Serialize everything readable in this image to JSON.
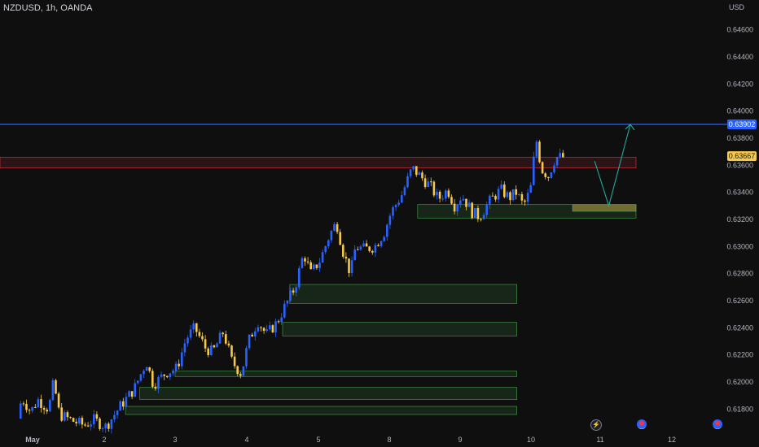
{
  "header": {
    "title": "NZDUSD, 1h, OANDA",
    "currency": "USD"
  },
  "colors": {
    "background": "#0f0f0f",
    "bull": "#2962ff",
    "bear": "#f7c948",
    "resistance_line": "#2962ff",
    "resistance_zone": "#f23645",
    "demand_zone": "#4caf50",
    "projection": "#26a69a",
    "price_badge": "#f7c948",
    "level_badge": "#2962ff"
  },
  "events": [
    {
      "name": "lightning-icon",
      "x": "11"
    },
    {
      "name": "flag-icon",
      "x": "11.5"
    },
    {
      "name": "flag-icon",
      "x": "12.6"
    }
  ],
  "chart_data": {
    "type": "candlestick",
    "title": "NZDUSD, 1h, OANDA",
    "ylabel": "USD",
    "ylim": [
      0.6164,
      0.6482
    ],
    "yticks": [
      "0.64600",
      "0.64400",
      "0.64200",
      "0.64000",
      "0.63800",
      "0.63600",
      "0.63400",
      "0.63200",
      "0.63000",
      "0.62800",
      "0.62600",
      "0.62400",
      "0.62200",
      "0.62000",
      "0.61800"
    ],
    "xticks": [
      {
        "label": "May",
        "day": 1,
        "bold": true
      },
      {
        "label": "2",
        "day": 2
      },
      {
        "label": "3",
        "day": 3
      },
      {
        "label": "4",
        "day": 4
      },
      {
        "label": "5",
        "day": 5
      },
      {
        "label": "8",
        "day": 6
      },
      {
        "label": "9",
        "day": 7
      },
      {
        "label": "10",
        "day": 8
      },
      {
        "label": "11",
        "day": 9
      },
      {
        "label": "12",
        "day": 10
      }
    ],
    "resistance_line": {
      "value": 0.63902,
      "label": "0.63902"
    },
    "current_price": {
      "value": 0.63667,
      "label": "0.63667"
    },
    "resistance_zone": {
      "low": 0.6358,
      "high": 0.6366,
      "start_day": 0.5,
      "end_day": 9.5
    },
    "demand_zones": [
      {
        "low": 0.6176,
        "high": 0.6182,
        "start_day": 2.3,
        "end_day": 7.8
      },
      {
        "low": 0.6187,
        "high": 0.6196,
        "start_day": 2.5,
        "end_day": 7.8
      },
      {
        "low": 0.6204,
        "high": 0.6208,
        "start_day": 3.0,
        "end_day": 7.8
      },
      {
        "low": 0.6234,
        "high": 0.6244,
        "start_day": 4.5,
        "end_day": 7.8
      },
      {
        "low": 0.6258,
        "high": 0.6272,
        "start_day": 4.6,
        "end_day": 7.8
      },
      {
        "low": 0.6321,
        "high": 0.6331,
        "start_day": 6.4,
        "end_day": 9.5
      },
      {
        "low": 0.6326,
        "high": 0.6331,
        "start_day": 8.6,
        "end_day": 9.5
      }
    ],
    "projection": [
      {
        "day": 8.92,
        "price": 0.6363
      },
      {
        "day": 9.12,
        "price": 0.633
      },
      {
        "day": 9.42,
        "price": 0.63902
      }
    ],
    "path": [
      [
        0.6,
        0.6173
      ],
      [
        0.72,
        0.6188
      ],
      [
        0.85,
        0.6184
      ],
      [
        1.0,
        0.6178
      ],
      [
        1.1,
        0.6187
      ],
      [
        1.25,
        0.618
      ],
      [
        1.32,
        0.62
      ],
      [
        1.4,
        0.6176
      ],
      [
        1.6,
        0.6171
      ],
      [
        1.75,
        0.6168
      ],
      [
        1.88,
        0.6172
      ],
      [
        2.05,
        0.6167
      ],
      [
        2.25,
        0.6182
      ],
      [
        2.45,
        0.6195
      ],
      [
        2.62,
        0.6215
      ],
      [
        2.72,
        0.6198
      ],
      [
        2.9,
        0.6207
      ],
      [
        3.05,
        0.621
      ],
      [
        3.18,
        0.6232
      ],
      [
        3.3,
        0.624
      ],
      [
        3.45,
        0.6225
      ],
      [
        3.55,
        0.6222
      ],
      [
        3.7,
        0.6237
      ],
      [
        3.82,
        0.6215
      ],
      [
        3.95,
        0.6206
      ],
      [
        4.05,
        0.623
      ],
      [
        4.18,
        0.6245
      ],
      [
        4.3,
        0.6235
      ],
      [
        4.45,
        0.6244
      ],
      [
        4.55,
        0.6255
      ],
      [
        4.7,
        0.627
      ],
      [
        4.82,
        0.6295
      ],
      [
        4.92,
        0.628
      ],
      [
        5.05,
        0.629
      ],
      [
        5.18,
        0.6308
      ],
      [
        5.28,
        0.6318
      ],
      [
        5.38,
        0.6295
      ],
      [
        5.48,
        0.628
      ],
      [
        5.55,
        0.63
      ],
      [
        5.68,
        0.6298
      ],
      [
        5.82,
        0.63
      ],
      [
        5.95,
        0.631
      ],
      [
        6.05,
        0.6325
      ],
      [
        6.2,
        0.6338
      ],
      [
        6.35,
        0.6358
      ],
      [
        6.5,
        0.635
      ],
      [
        6.6,
        0.6345
      ],
      [
        6.72,
        0.6335
      ],
      [
        6.85,
        0.6342
      ],
      [
        6.95,
        0.633
      ],
      [
        7.05,
        0.6338
      ],
      [
        7.2,
        0.6325
      ],
      [
        7.3,
        0.6322
      ],
      [
        7.45,
        0.6334
      ],
      [
        7.6,
        0.6342
      ],
      [
        7.72,
        0.6336
      ],
      [
        7.82,
        0.634
      ],
      [
        7.92,
        0.633
      ],
      [
        8.02,
        0.6342
      ],
      [
        8.1,
        0.638
      ],
      [
        8.18,
        0.6357
      ],
      [
        8.28,
        0.6352
      ],
      [
        8.38,
        0.6366
      ],
      [
        8.45,
        0.6366
      ]
    ]
  }
}
